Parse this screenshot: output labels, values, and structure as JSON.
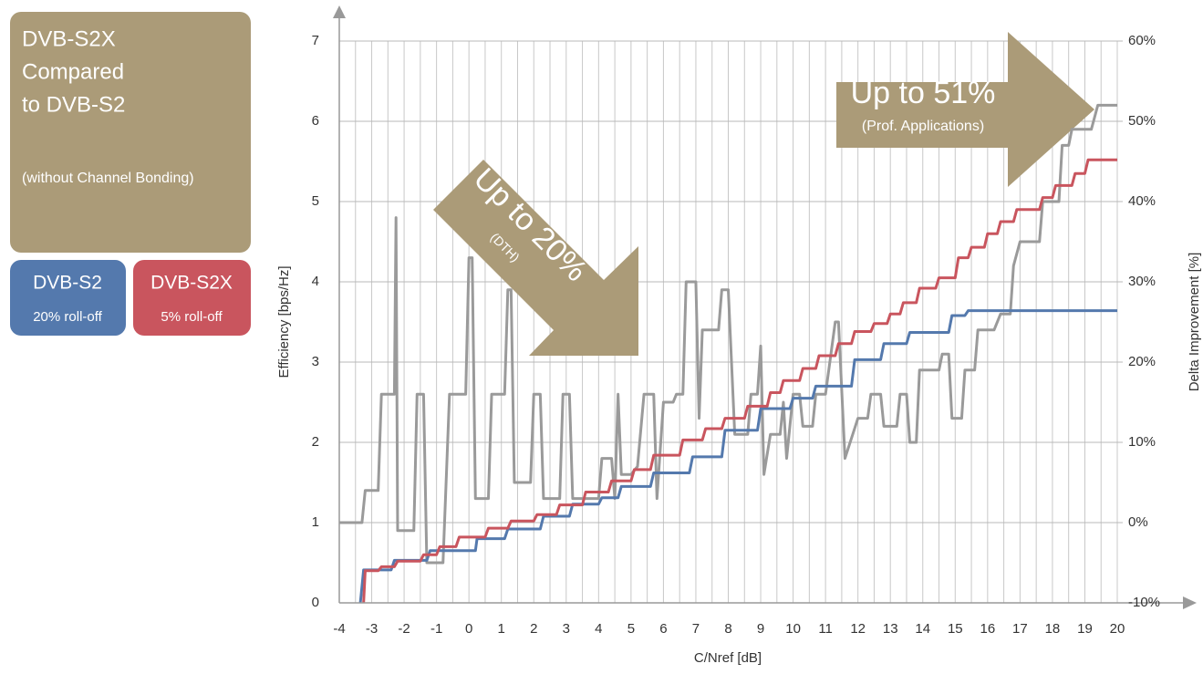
{
  "chart_data": {
    "type": "line",
    "title": [
      "DVB-S2X",
      "Compared",
      "to DVB-S2"
    ],
    "subtitle": "(without Channel Bonding)",
    "x_label": "C/Nref [dB]",
    "y_label": "Efficiency [bps/Hz]",
    "y2_label": "Delta Improvement [%]",
    "xlim": [
      -4,
      20
    ],
    "xticks": [
      -4,
      -3,
      -2,
      -1,
      0,
      1,
      2,
      3,
      4,
      5,
      6,
      7,
      8,
      9,
      10,
      11,
      12,
      13,
      14,
      15,
      16,
      17,
      18,
      19,
      20
    ],
    "ylim": [
      0,
      7
    ],
    "yticks": [
      0,
      1,
      2,
      3,
      4,
      5,
      6,
      7
    ],
    "y2lim": [
      -10,
      60
    ],
    "y2ticks": [
      {
        "value": -10,
        "label": "-10%"
      },
      {
        "value": 0,
        "label": "0%"
      },
      {
        "value": 10,
        "label": "10%"
      },
      {
        "value": 20,
        "label": "20%"
      },
      {
        "value": 30,
        "label": "30%"
      },
      {
        "value": 40,
        "label": "40%"
      },
      {
        "value": 50,
        "label": "50%"
      },
      {
        "value": 60,
        "label": "60%"
      }
    ],
    "grid": true,
    "annotations": [
      {
        "text": "Up to 20%",
        "note": "(DTH)"
      },
      {
        "text": "Up to 51%",
        "note": "(Prof. Applications)"
      }
    ],
    "series": [
      {
        "name": "DVB-S2",
        "roll_off": "20% roll-off",
        "color": "#5479ad",
        "x": [
          -3.35,
          -3.25,
          -2.4,
          -2.3,
          -1.3,
          -1.2,
          0.2,
          0.25,
          1.1,
          1.2,
          2.2,
          2.3,
          3.1,
          3.2,
          4.0,
          4.1,
          4.6,
          4.7,
          5.6,
          5.7,
          6.8,
          6.9,
          7.8,
          7.9,
          8.9,
          9.0,
          9.9,
          10.0,
          10.6,
          10.7,
          11.8,
          11.9,
          12.7,
          12.8,
          13.5,
          13.6,
          14.8,
          14.9,
          15.3,
          15.4,
          20
        ],
        "values": [
          0,
          0.41,
          0.41,
          0.53,
          0.53,
          0.65,
          0.65,
          0.8,
          0.8,
          0.92,
          0.92,
          1.08,
          1.08,
          1.23,
          1.23,
          1.31,
          1.31,
          1.45,
          1.45,
          1.62,
          1.62,
          1.82,
          1.82,
          2.15,
          2.15,
          2.42,
          2.42,
          2.55,
          2.55,
          2.7,
          2.7,
          3.03,
          3.03,
          3.23,
          3.23,
          3.37,
          3.37,
          3.58,
          3.58,
          3.64,
          3.64
        ]
      },
      {
        "name": "DVB-S2X",
        "roll_off": "5% roll-off",
        "color": "#c9555e",
        "x": [
          -3.25,
          -3.2,
          -2.8,
          -2.7,
          -2.3,
          -2.2,
          -1.5,
          -1.4,
          -1,
          -0.9,
          -0.4,
          -0.3,
          0.5,
          0.6,
          1.2,
          1.3,
          2.0,
          2.1,
          2.7,
          2.8,
          3.5,
          3.6,
          4.3,
          4.4,
          5,
          5.1,
          5.6,
          5.7,
          6.5,
          6.6,
          7.2,
          7.3,
          7.8,
          7.9,
          8.5,
          8.6,
          9.2,
          9.3,
          9.6,
          9.7,
          10.2,
          10.3,
          10.7,
          10.8,
          11.3,
          11.4,
          11.8,
          11.9,
          12.4,
          12.5,
          12.9,
          13.0,
          13.3,
          13.4,
          13.8,
          13.9,
          14.4,
          14.5,
          15.0,
          15.1,
          15.4,
          15.5,
          15.9,
          16.0,
          16.3,
          16.4,
          16.8,
          16.9,
          17.6,
          17.7,
          18.0,
          18.1,
          18.6,
          18.7,
          19.0,
          19.1,
          20
        ],
        "values": [
          0,
          0.4,
          0.4,
          0.45,
          0.45,
          0.52,
          0.52,
          0.6,
          0.6,
          0.7,
          0.7,
          0.82,
          0.82,
          0.93,
          0.93,
          1.02,
          1.02,
          1.1,
          1.1,
          1.22,
          1.22,
          1.38,
          1.38,
          1.52,
          1.52,
          1.66,
          1.66,
          1.84,
          1.84,
          2.03,
          2.03,
          2.17,
          2.17,
          2.3,
          2.3,
          2.45,
          2.45,
          2.62,
          2.62,
          2.77,
          2.77,
          2.92,
          2.92,
          3.08,
          3.08,
          3.23,
          3.23,
          3.38,
          3.38,
          3.48,
          3.48,
          3.6,
          3.6,
          3.74,
          3.74,
          3.92,
          3.92,
          4.05,
          4.05,
          4.3,
          4.3,
          4.43,
          4.43,
          4.6,
          4.6,
          4.75,
          4.75,
          4.9,
          4.9,
          5.05,
          5.05,
          5.2,
          5.2,
          5.35,
          5.35,
          5.52,
          5.52
        ]
      },
      {
        "color": "#9a9a9a",
        "axis": "y2",
        "x": [
          -4,
          -3.3,
          -3.2,
          -2.8,
          -2.7,
          -2.3,
          -2.25,
          -2.2,
          -1.7,
          -1.6,
          -1.4,
          -1.3,
          -0.8,
          -0.6,
          -0.1,
          0,
          0.1,
          0.2,
          0.6,
          0.7,
          1.1,
          1.2,
          1.3,
          1.4,
          1.9,
          2.0,
          2.2,
          2.3,
          2.8,
          2.9,
          3.1,
          3.2,
          4.0,
          4.1,
          4.4,
          4.5,
          4.6,
          4.7,
          5,
          5.2,
          5.4,
          5.7,
          5.8,
          6.0,
          6.3,
          6.4,
          6.6,
          6.7,
          7.0,
          7.1,
          7.2,
          7.7,
          7.8,
          8.0,
          8.2,
          8.6,
          8.7,
          8.9,
          9.0,
          9.1,
          9.3,
          9.6,
          9.7,
          9.8,
          10.0,
          10.2,
          10.3,
          10.6,
          10.7,
          11.0,
          11.3,
          11.4,
          11.6,
          12.0,
          12.3,
          12.4,
          12.7,
          12.8,
          13.2,
          13.3,
          13.5,
          13.6,
          13.8,
          13.9,
          14.5,
          14.6,
          14.8,
          14.9,
          15.2,
          15.3,
          15.6,
          15.7,
          16.2,
          16.4,
          16.7,
          16.8,
          17.0,
          17.6,
          17.7,
          18.2,
          18.3,
          18.5,
          18.6,
          19.2,
          19.4,
          20
        ],
        "values": [
          0,
          0,
          4,
          4,
          16,
          16,
          38,
          -1,
          -1,
          16,
          16,
          -5,
          -5,
          16,
          16,
          33,
          33,
          3,
          3,
          16,
          16,
          29,
          29,
          5,
          5,
          16,
          16,
          3,
          3,
          16,
          16,
          3,
          3,
          8,
          8,
          3,
          16,
          6,
          6,
          7,
          16,
          16,
          3,
          15,
          15,
          16,
          16,
          30,
          30,
          13,
          24,
          24,
          29,
          29,
          11,
          11,
          16,
          16,
          22,
          6,
          11,
          11,
          15,
          8,
          16,
          16,
          12,
          12,
          16,
          16,
          25,
          25,
          8,
          13,
          13,
          16,
          16,
          12,
          12,
          16,
          16,
          10,
          10,
          19,
          19,
          21,
          21,
          13,
          13,
          19,
          19,
          24,
          24,
          26,
          26,
          32,
          35,
          35,
          40,
          40,
          47,
          47,
          49,
          49,
          52,
          52
        ]
      }
    ]
  }
}
